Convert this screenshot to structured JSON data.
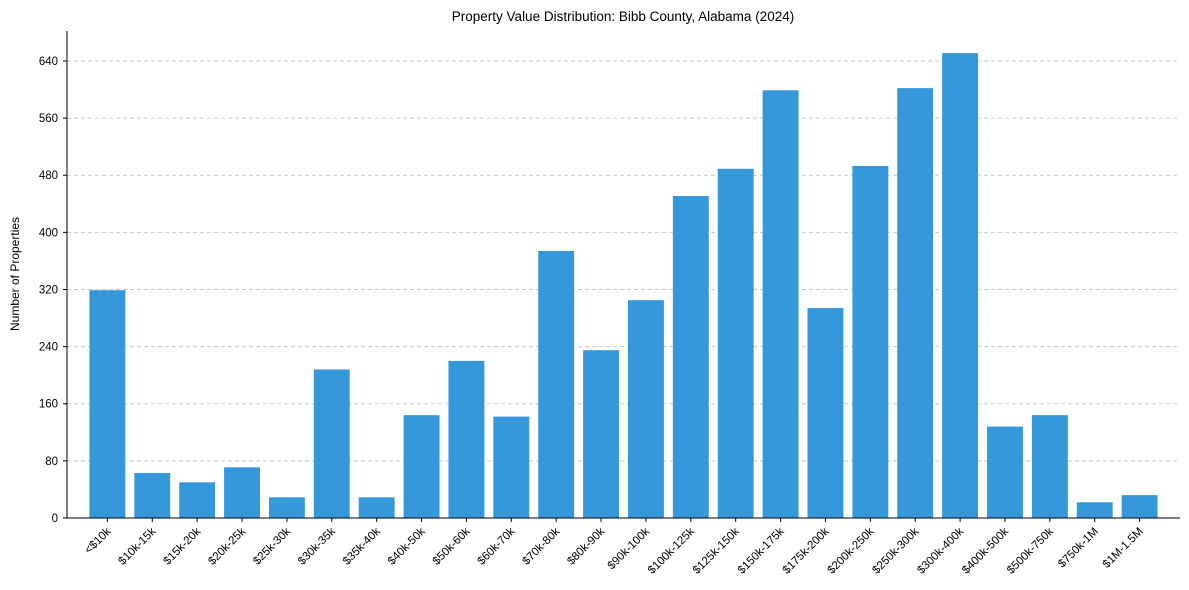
{
  "chart_data": {
    "type": "bar",
    "title": "Property Value Distribution: Bibb County, Alabama (2024)",
    "xlabel": "",
    "ylabel": "Number of Properties",
    "categories": [
      "<$10k",
      "$10k-15k",
      "$15k-20k",
      "$20k-25k",
      "$25k-30k",
      "$30k-35k",
      "$35k-40k",
      "$40k-50k",
      "$50k-60k",
      "$60k-70k",
      "$70k-80k",
      "$80k-90k",
      "$90k-100k",
      "$100k-125k",
      "$125k-150k",
      "$150k-175k",
      "$175k-200k",
      "$200k-250k",
      "$250k-300k",
      "$300k-400k",
      "$400k-500k",
      "$500k-750k",
      "$750k-1M",
      "$1M-1.5M"
    ],
    "values": [
      319,
      63,
      50,
      71,
      29,
      208,
      29,
      144,
      220,
      142,
      374,
      235,
      305,
      451,
      489,
      599,
      294,
      493,
      602,
      651,
      128,
      144,
      22,
      32
    ],
    "ylim": [
      0,
      682
    ],
    "yticks": [
      0,
      80,
      160,
      240,
      320,
      400,
      480,
      560,
      640
    ],
    "grid": "y-dashed",
    "bar_color": "#3498db"
  }
}
